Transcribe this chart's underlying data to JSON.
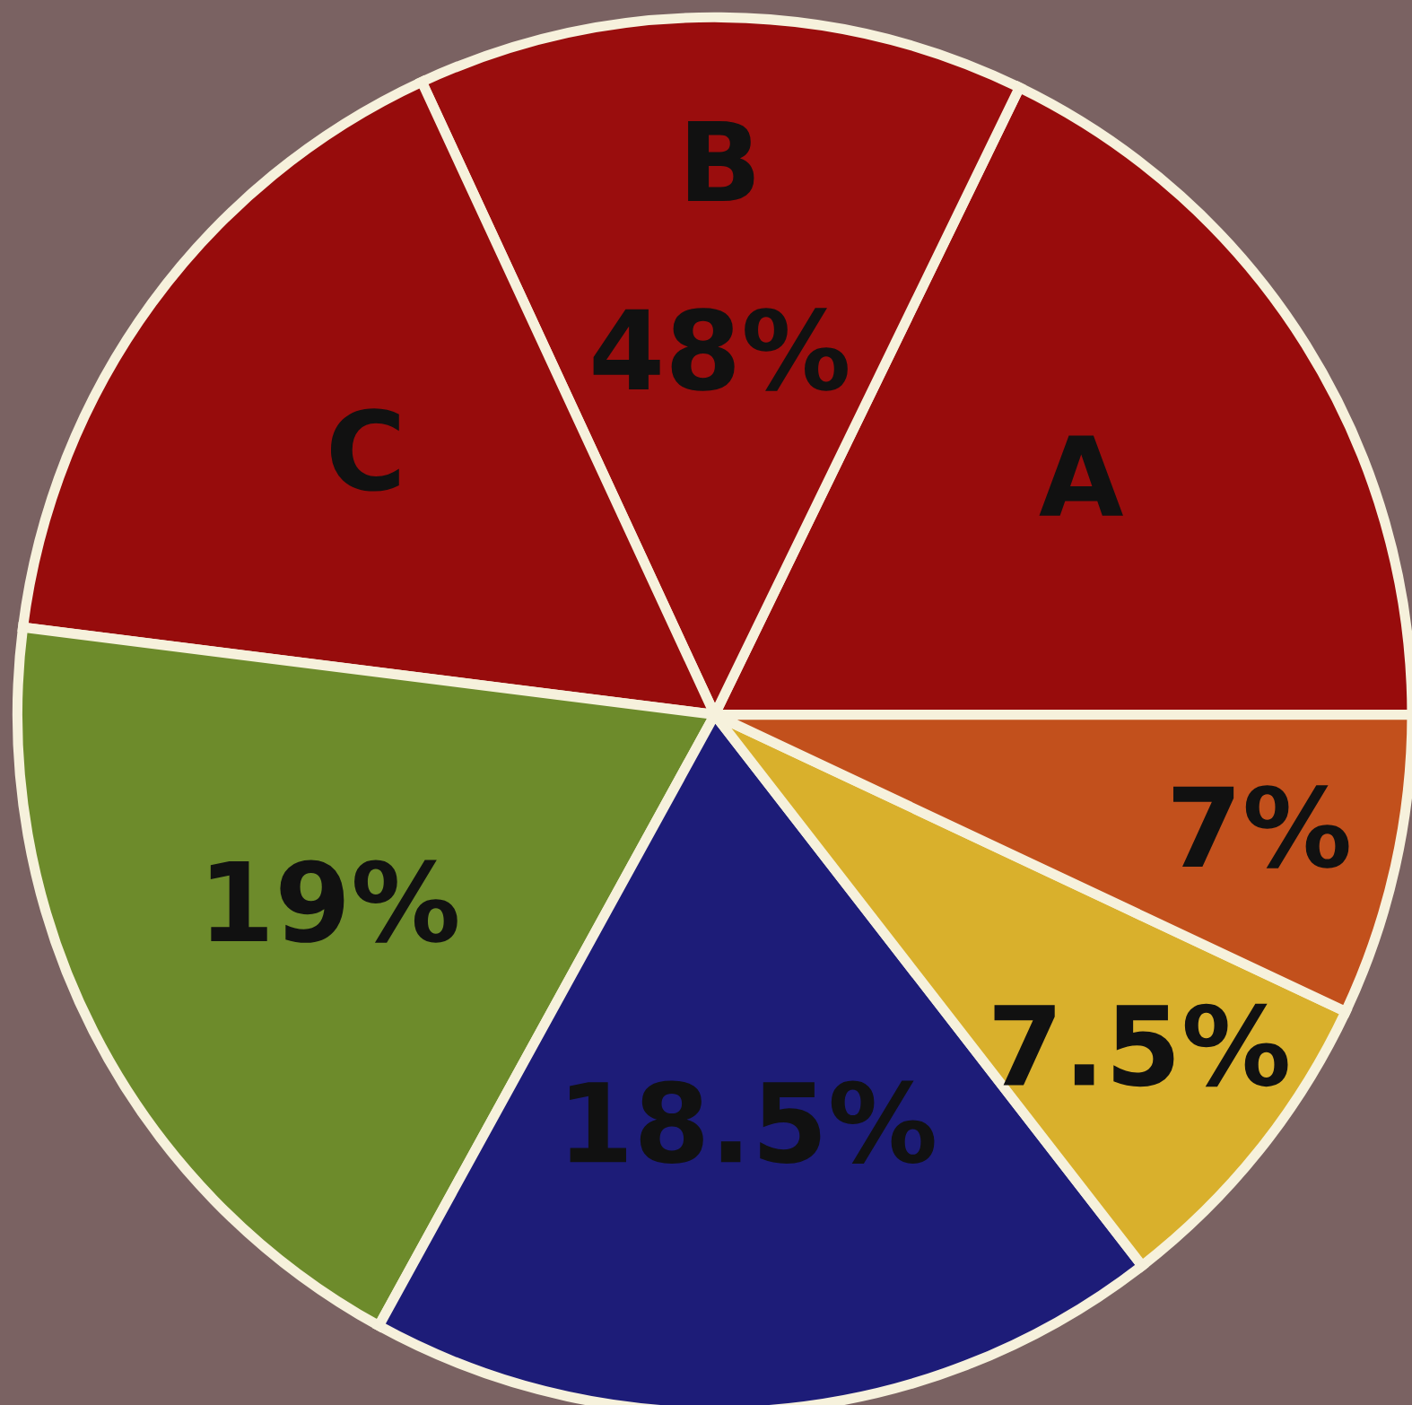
{
  "chart_data": {
    "type": "pie",
    "categories": [
      "A",
      "B",
      "C",
      null,
      null,
      null,
      null
    ],
    "values": [
      17.8,
      14.1,
      16.1,
      19,
      18.5,
      7.5,
      7
    ],
    "colors": [
      "#980c0c",
      "#9a0d0d",
      "#970c0c",
      "#6d8b2b",
      "#1d1c78",
      "#d9b02c",
      "#c2501c"
    ],
    "value_labels": [
      null,
      null,
      null,
      "19%",
      "18.5%",
      "7.5%",
      "7%"
    ],
    "annotations": [
      "48%"
    ]
  }
}
